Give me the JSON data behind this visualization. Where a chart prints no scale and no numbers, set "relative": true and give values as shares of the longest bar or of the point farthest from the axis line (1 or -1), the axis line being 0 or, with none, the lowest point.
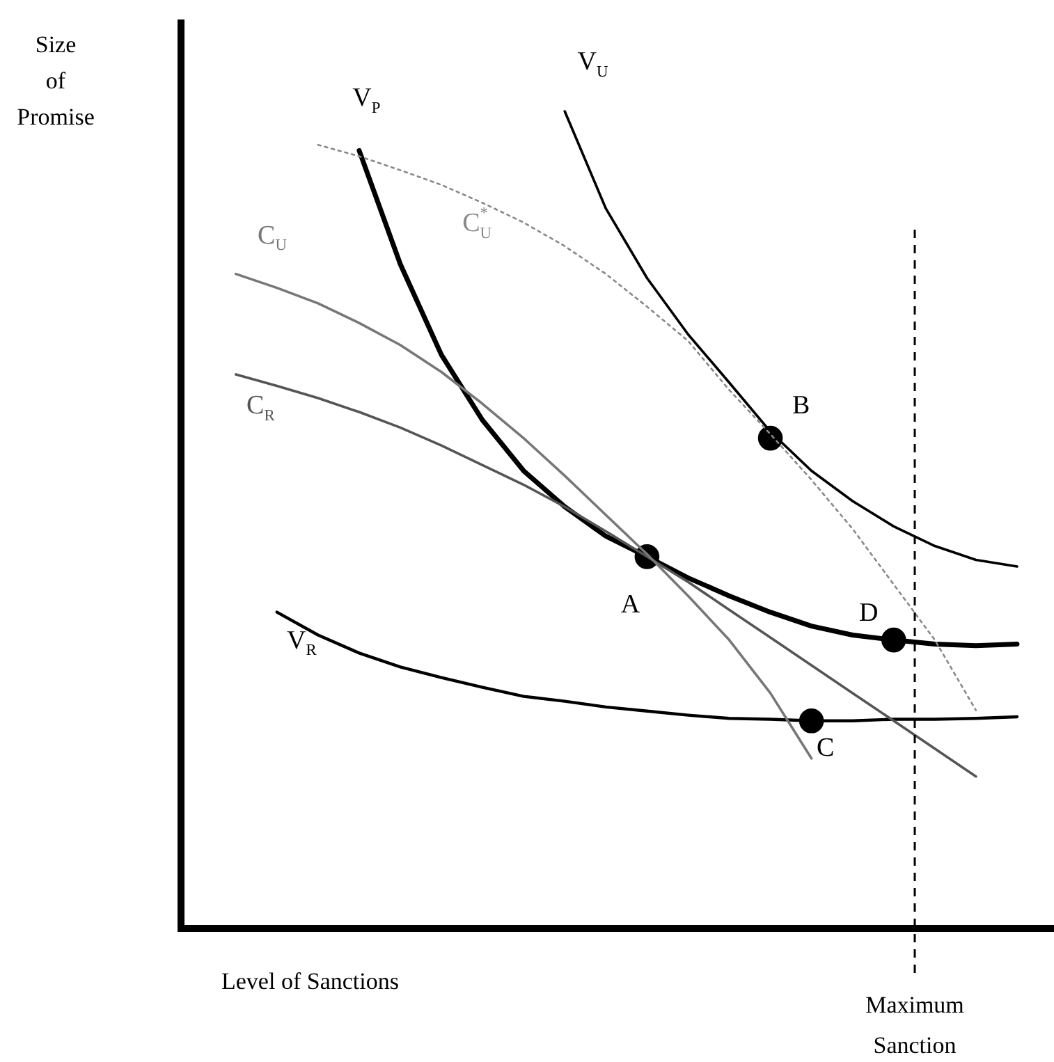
{
  "chart_data": {
    "type": "line",
    "relative": true,
    "xlabel": "Level of Sanctions",
    "ylabel": "Size of Promise",
    "categories": [
      null,
      null,
      null,
      null,
      null,
      null,
      null,
      null,
      null,
      null,
      null,
      null,
      null,
      null,
      null,
      null,
      null,
      null,
      null,
      null
    ],
    "legend": false,
    "grid": false,
    "tick_labels": false,
    "annotations": [
      "Maximum Sanction"
    ],
    "series": [
      {
        "name": "C$_{U}$",
        "type": "line",
        "color": "#777777",
        "line_style": "solid",
        "marker": "none",
        "values": [
          0.801,
          0.784,
          0.765,
          0.741,
          0.714,
          0.681,
          0.642,
          0.6,
          0.554,
          0.506,
          0.458,
          0.407,
          0.353,
          0.288,
          0.208,
          null,
          null,
          null,
          null,
          null
        ]
      },
      {
        "name": "C$_{R}$",
        "type": "line",
        "color": "#555555",
        "line_style": "solid",
        "marker": "none",
        "values": [
          0.678,
          0.664,
          0.649,
          0.632,
          0.613,
          0.591,
          0.567,
          0.543,
          0.516,
          0.486,
          0.455,
          0.424,
          0.39,
          0.356,
          0.322,
          0.288,
          0.254,
          0.22,
          0.186,
          null
        ]
      },
      {
        "name": "C$_{U}$$^{*}$",
        "type": "line",
        "color": "#888888",
        "line_style": "dotted",
        "marker": "none",
        "values": [
          null,
          null,
          0.959,
          0.945,
          0.928,
          0.91,
          0.888,
          0.864,
          0.835,
          0.801,
          0.761,
          0.719,
          0.659,
          0.605,
          0.549,
          0.489,
          0.421,
          0.353,
          0.267,
          null
        ]
      },
      {
        "name": "V$_{P}$",
        "type": "line",
        "color": "#000000",
        "line_style": "solid",
        "marker": "none",
        "values": [
          null,
          null,
          null,
          0.952,
          0.813,
          0.702,
          0.622,
          0.56,
          0.516,
          0.48,
          0.455,
          0.429,
          0.407,
          0.387,
          0.37,
          0.359,
          0.353,
          0.348,
          0.346,
          0.348
        ]
      },
      {
        "name": "V$_{U}$",
        "type": "line",
        "color": "#000000",
        "line_style": "solid",
        "marker": "none",
        "values": [
          null,
          null,
          null,
          null,
          null,
          null,
          null,
          null,
          1,
          0.881,
          0.796,
          0.727,
          0.668,
          0.608,
          0.56,
          0.523,
          0.492,
          0.468,
          0.451,
          0.443
        ]
      },
      {
        "name": "V$_{R}$",
        "type": "line",
        "color": "#000000",
        "line_style": "solid",
        "marker": "none",
        "values": [
          null,
          0.387,
          0.359,
          0.337,
          0.32,
          0.307,
          0.295,
          0.284,
          0.278,
          0.271,
          0.266,
          0.261,
          0.257,
          0.256,
          0.254,
          0.254,
          0.256,
          0.256,
          0.257,
          0.259
        ]
      },
      {
        "name": "A",
        "type": "line",
        "color": "#000000",
        "marker": "circle",
        "values": [
          null,
          null,
          null,
          null,
          null,
          null,
          null,
          null,
          null,
          null,
          0.455,
          null,
          null,
          null,
          null,
          null,
          null,
          null,
          null,
          null
        ]
      },
      {
        "name": "B",
        "type": "line",
        "color": "#000000",
        "marker": "circle",
        "values": [
          null,
          null,
          null,
          null,
          null,
          null,
          null,
          null,
          null,
          null,
          null,
          null,
          null,
          0.6,
          null,
          null,
          null,
          null,
          null,
          null
        ]
      },
      {
        "name": "C",
        "type": "line",
        "color": "#000000",
        "marker": "circle",
        "values": [
          null,
          null,
          null,
          null,
          null,
          null,
          null,
          null,
          null,
          null,
          null,
          null,
          null,
          null,
          0.254,
          null,
          null,
          null,
          null,
          null
        ]
      },
      {
        "name": "D",
        "type": "line",
        "color": "#000000",
        "marker": "circle",
        "values": [
          null,
          null,
          null,
          null,
          null,
          null,
          null,
          null,
          null,
          null,
          null,
          null,
          null,
          null,
          null,
          null,
          0.353,
          null,
          null,
          null
        ]
      }
    ]
  }
}
